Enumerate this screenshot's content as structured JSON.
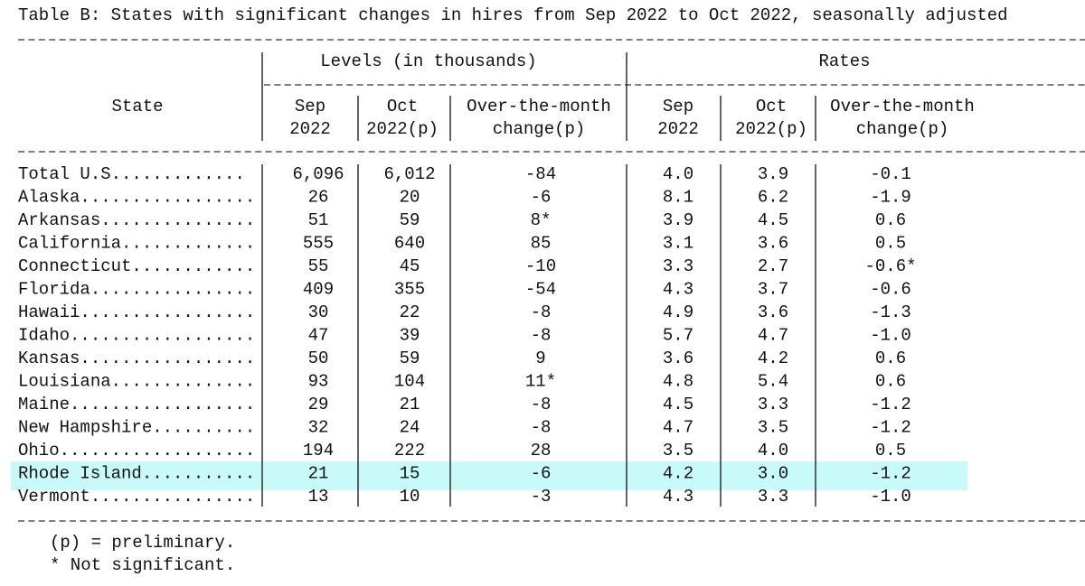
{
  "title": "Table B: States with significant changes in hires from Sep 2022 to Oct 2022, seasonally adjusted",
  "header": {
    "state": "State",
    "groups": [
      "Levels (in thousands)",
      "Rates"
    ],
    "columns": [
      [
        "Sep",
        "2022"
      ],
      [
        "Oct",
        "2022(p)"
      ],
      [
        "Over-the-month",
        "change(p)"
      ],
      [
        "Sep",
        "2022"
      ],
      [
        "Oct",
        "2022(p)"
      ],
      [
        "Over-the-month",
        "change(p)"
      ]
    ]
  },
  "rows": [
    [
      "Total U.S.............",
      "6,096",
      "6,012",
      "-84",
      "4.0",
      "3.9",
      "-0.1"
    ],
    [
      "Alaska.................",
      "26",
      "20",
      "-6",
      "8.1",
      "6.2",
      "-1.9"
    ],
    [
      "Arkansas...............",
      "51",
      "59",
      "8*",
      "3.9",
      "4.5",
      "0.6"
    ],
    [
      "California.............",
      "555",
      "640",
      "85",
      "3.1",
      "3.6",
      "0.5"
    ],
    [
      "Connecticut............",
      "55",
      "45",
      "-10",
      "3.3",
      "2.7",
      "-0.6*"
    ],
    [
      "Florida................",
      "409",
      "355",
      "-54",
      "4.3",
      "3.7",
      "-0.6"
    ],
    [
      "Hawaii.................",
      "30",
      "22",
      "-8",
      "4.9",
      "3.6",
      "-1.3"
    ],
    [
      "Idaho..................",
      "47",
      "39",
      "-8",
      "5.7",
      "4.7",
      "-1.0"
    ],
    [
      "Kansas.................",
      "50",
      "59",
      "9",
      "3.6",
      "4.2",
      "0.6"
    ],
    [
      "Louisiana..............",
      "93",
      "104",
      "11*",
      "4.8",
      "5.4",
      "0.6"
    ],
    [
      "Maine..................",
      "29",
      "21",
      "-8",
      "4.5",
      "3.3",
      "-1.2"
    ],
    [
      "New Hampshire..........",
      "32",
      "24",
      "-8",
      "4.7",
      "3.5",
      "-1.2"
    ],
    [
      "Ohio...................",
      "194",
      "222",
      "28",
      "3.5",
      "4.0",
      "0.5"
    ],
    [
      "Rhode Island...........",
      "21",
      "15",
      "-6",
      "4.2",
      "3.0",
      "-1.2"
    ],
    [
      "Vermont................",
      "13",
      "10",
      "-3",
      "4.3",
      "3.3",
      "-1.0"
    ]
  ],
  "footnotes": [
    "(p) = preliminary.",
    "* Not significant."
  ]
}
